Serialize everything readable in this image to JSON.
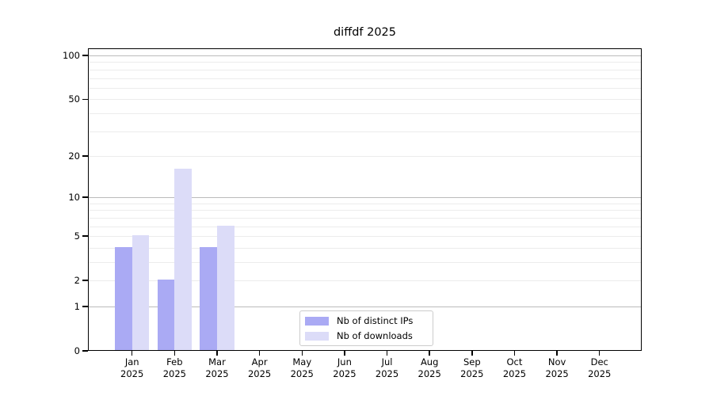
{
  "chart_data": {
    "type": "bar",
    "title": "diffdf 2025",
    "categories": [
      "Jan",
      "Feb",
      "Mar",
      "Apr",
      "May",
      "Jun",
      "Jul",
      "Aug",
      "Sep",
      "Oct",
      "Nov",
      "Dec"
    ],
    "year_label": "2025",
    "series": [
      {
        "name": "Nb of distinct IPs",
        "color": "#aaaaf4",
        "values": [
          4,
          2,
          4,
          0,
          0,
          0,
          0,
          0,
          0,
          0,
          0,
          0
        ]
      },
      {
        "name": "Nb of downloads",
        "color": "#dcdcf8",
        "values": [
          5,
          16,
          6,
          0,
          0,
          0,
          0,
          0,
          0,
          0,
          0,
          0
        ]
      }
    ],
    "yscale": "log1p",
    "yticks": [
      0,
      1,
      2,
      5,
      10,
      20,
      50,
      100
    ],
    "ylim": [
      0,
      112
    ],
    "xlabel": "",
    "ylabel": "",
    "legend_position": "lower center",
    "grid": "on"
  },
  "colors": {
    "bar_distinct_ips": "#aaaaf4",
    "bar_downloads": "#dcdcf8",
    "grid_major": "#bbbbbb",
    "grid_minor": "#ececec",
    "spine": "#000000",
    "legend_border": "#cccccc",
    "background": "#ffffff",
    "text": "#000000"
  }
}
